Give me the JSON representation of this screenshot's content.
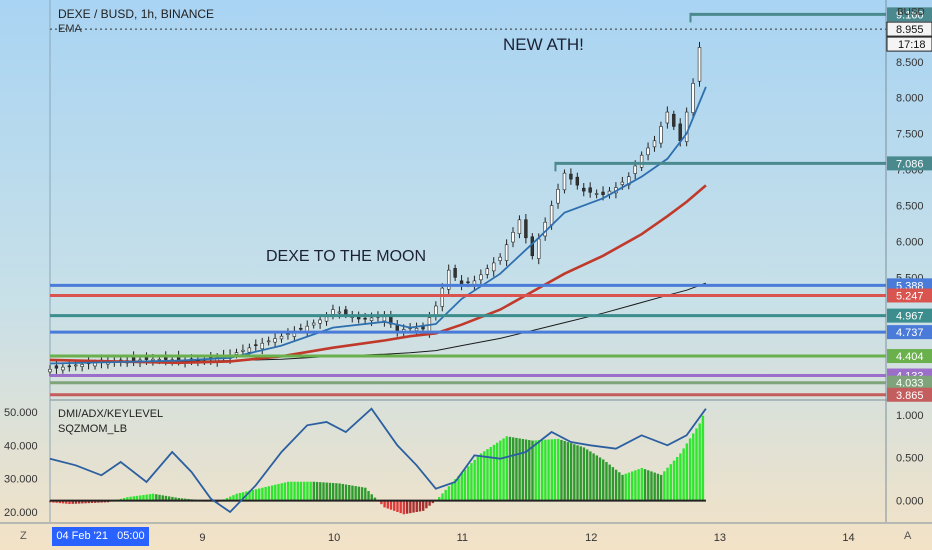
{
  "chart_data": {
    "type": "line",
    "main": {
      "symbol": "DEXE / BUSD, 1h, BINANCE",
      "indicator": "EMA",
      "currency": "BUSD",
      "annotations": [
        "NEW ATH!",
        "DEXE TO THE MOON"
      ],
      "y_ticks": [
        "9.000",
        "8.500",
        "8.000",
        "7.500",
        "7.000",
        "6.500",
        "6.000",
        "5.500"
      ],
      "ylim": [
        3.82,
        9.36
      ],
      "last_price": "8.955",
      "countdown": "17:18",
      "levels": [
        {
          "value": 9.16,
          "label": "9.160",
          "color": "#4a8a8e"
        },
        {
          "value": 7.086,
          "label": "7.086",
          "color": "#4a8a8e"
        },
        {
          "value": 5.388,
          "label": "5.388",
          "color": "#4a7bd8"
        },
        {
          "value": 5.247,
          "label": "5.247",
          "color": "#d9534f"
        },
        {
          "value": 4.967,
          "label": "4.967",
          "color": "#3c8d8d"
        },
        {
          "value": 4.737,
          "label": "4.737",
          "color": "#4a7bd8"
        },
        {
          "value": 4.404,
          "label": "4.404",
          "color": "#6ab04c"
        },
        {
          "value": 4.133,
          "label": "4.133",
          "color": "#9b6fc9"
        },
        {
          "value": 4.033,
          "label": "4.033",
          "color": "#7fa37a"
        },
        {
          "value": 3.865,
          "label": "3.865",
          "color": "#c45d5d"
        }
      ],
      "price_path": {
        "x": [
          7.8,
          8.0,
          8.3,
          8.6,
          8.8,
          9.0,
          9.2,
          9.4,
          9.6,
          9.8,
          9.95,
          10.0,
          10.2,
          10.4,
          10.5,
          10.6,
          10.7,
          10.8,
          10.9,
          11.0,
          11.1,
          11.2,
          11.3,
          11.45,
          11.55,
          11.7,
          11.8,
          11.95,
          12.1,
          12.2,
          12.3,
          12.4,
          12.5,
          12.6,
          12.7,
          12.8,
          12.85,
          12.9
        ],
        "y": [
          4.22,
          4.28,
          4.33,
          4.36,
          4.35,
          4.34,
          4.42,
          4.55,
          4.68,
          4.82,
          4.95,
          5.05,
          4.92,
          4.95,
          4.75,
          4.8,
          4.78,
          5.1,
          5.6,
          5.4,
          5.45,
          5.62,
          5.78,
          6.3,
          5.8,
          6.5,
          6.95,
          6.7,
          6.65,
          6.75,
          6.9,
          7.2,
          7.4,
          7.8,
          7.4,
          8.2,
          8.7,
          9.1
        ]
      },
      "ema_fast": {
        "x": [
          7.8,
          8.3,
          8.8,
          9.2,
          9.6,
          10.0,
          10.4,
          10.6,
          10.8,
          11.0,
          11.3,
          11.6,
          11.8,
          12.1,
          12.4,
          12.6,
          12.75,
          12.9
        ],
        "y": [
          4.3,
          4.32,
          4.34,
          4.38,
          4.55,
          4.8,
          4.88,
          4.8,
          4.85,
          5.2,
          5.55,
          6.05,
          6.4,
          6.6,
          6.9,
          7.15,
          7.5,
          8.15
        ]
      },
      "ema_mid": {
        "x": [
          7.8,
          8.3,
          8.8,
          9.2,
          9.6,
          10.0,
          10.4,
          10.6,
          10.8,
          11.0,
          11.3,
          11.6,
          11.8,
          12.1,
          12.4,
          12.6,
          12.75,
          12.9
        ],
        "y": [
          4.35,
          4.33,
          4.31,
          4.33,
          4.4,
          4.52,
          4.62,
          4.68,
          4.72,
          4.84,
          5.05,
          5.35,
          5.55,
          5.8,
          6.1,
          6.35,
          6.55,
          6.78
        ]
      },
      "ema_slow": {
        "x": [
          7.8,
          8.3,
          8.8,
          9.2,
          9.6,
          10.0,
          10.4,
          10.6,
          10.8,
          11.0,
          11.3,
          11.6,
          11.8,
          12.1,
          12.4,
          12.6,
          12.75,
          12.9
        ],
        "y": [
          4.34,
          4.33,
          4.33,
          4.34,
          4.36,
          4.4,
          4.43,
          4.45,
          4.48,
          4.55,
          4.65,
          4.78,
          4.87,
          5.0,
          5.15,
          5.25,
          5.32,
          5.42
        ]
      }
    },
    "sub": {
      "labels": [
        "DMI/ADX/KEYLEVEL",
        "SQZMOM_LB"
      ],
      "left_ticks": [
        "50.000",
        "40.000",
        "30.000",
        "20.000"
      ],
      "right_ticks": [
        "1.000",
        "0.500",
        "0.000"
      ],
      "left_range": [
        17,
        53
      ],
      "right_range": [
        -0.25,
        1.15
      ],
      "adx": {
        "x": [
          7.8,
          8.0,
          8.2,
          8.35,
          8.55,
          8.75,
          8.9,
          9.05,
          9.2,
          9.4,
          9.6,
          9.8,
          9.95,
          10.1,
          10.3,
          10.5,
          10.65,
          10.8,
          10.95,
          11.1,
          11.3,
          11.5,
          11.7,
          11.85,
          12.0,
          12.2,
          12.4,
          12.6,
          12.75,
          12.9
        ],
        "y": [
          36,
          34,
          31,
          35,
          29,
          38,
          32,
          24,
          20,
          28,
          38,
          46,
          47,
          44,
          51,
          40,
          34,
          27,
          29,
          37,
          36,
          38,
          44,
          41,
          40,
          39,
          43,
          40,
          43,
          51
        ]
      },
      "momentum": {
        "x": [
          7.8,
          7.95,
          8.1,
          8.25,
          8.4,
          8.6,
          8.8,
          9.0,
          9.1,
          9.25,
          9.45,
          9.65,
          9.85,
          10.05,
          10.25,
          10.4,
          10.55,
          10.7,
          10.8,
          10.95,
          11.15,
          11.35,
          11.55,
          11.75,
          11.95,
          12.1,
          12.25,
          12.4,
          12.55,
          12.7,
          12.85,
          12.9
        ],
        "y": [
          -0.02,
          -0.04,
          -0.03,
          -0.02,
          0.04,
          0.08,
          0.03,
          0.0,
          -0.02,
          0.08,
          0.15,
          0.22,
          0.22,
          0.2,
          0.15,
          -0.08,
          -0.16,
          -0.12,
          0.0,
          0.25,
          0.55,
          0.75,
          0.7,
          0.72,
          0.62,
          0.48,
          0.3,
          0.38,
          0.3,
          0.55,
          0.9,
          1.08
        ]
      },
      "momentum_colors": {
        "strong_up": "#2ee62e",
        "weak_up": "#2e9a2e",
        "strong_down": "#e03a3a",
        "weak_down": "#a83030"
      }
    },
    "x_axis": {
      "ticks": [
        {
          "x": 9,
          "label": "9"
        },
        {
          "x": 10,
          "label": "10"
        },
        {
          "x": 11,
          "label": "11"
        },
        {
          "x": 12,
          "label": "12"
        },
        {
          "x": 13,
          "label": "13"
        },
        {
          "x": 14,
          "label": "14"
        }
      ],
      "xlim": [
        7.8,
        14.3
      ],
      "cursor_label": "04 Feb '21   05:00",
      "left_button": "Z",
      "right_button": "A"
    }
  }
}
